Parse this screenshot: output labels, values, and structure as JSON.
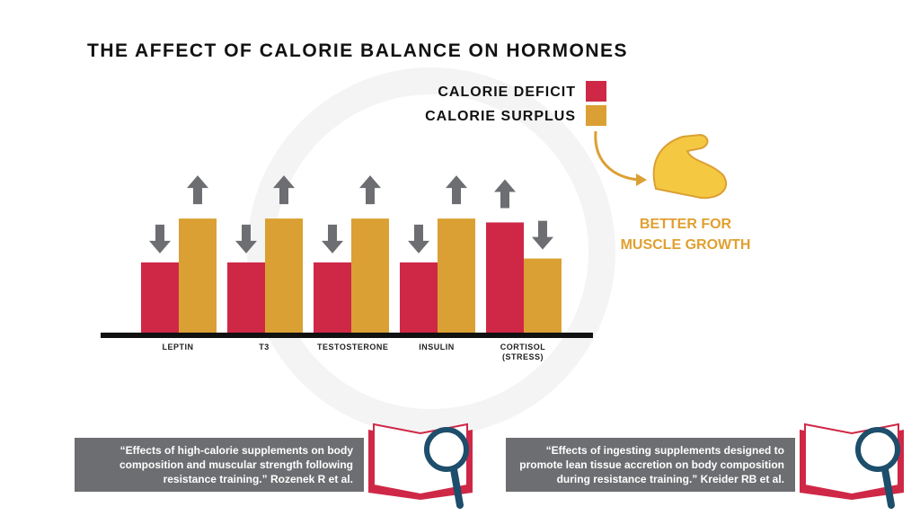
{
  "chart_data": {
    "type": "bar",
    "title": "THE AFFECT OF CALORIE BALANCE ON HORMONES",
    "categories": [
      "LEPTIN",
      "T3",
      "TESTOSTERONE",
      "INSULIN",
      "CORTISOL (STRESS)"
    ],
    "series": [
      {
        "name": "CALORIE DEFICIT",
        "color": "#cf2847",
        "values": [
          72,
          72,
          72,
          72,
          113
        ]
      },
      {
        "name": "CALORIE SURPLUS",
        "color": "#dba033",
        "values": [
          117,
          117,
          117,
          117,
          76
        ]
      }
    ],
    "ylim": [
      0,
      130
    ],
    "annotation": "BETTER FOR MUSCLE GROWTH"
  },
  "references": [
    {
      "quote": "“Effects of high-calorie supplements on body composition and muscular strength following resistance training.”",
      "author": "Rozenek R et al."
    },
    {
      "quote": "“Effects of ingesting supplements designed to promote lean tissue accretion on body composition during resistance training.”",
      "author": "Kreider RB et al."
    }
  ]
}
